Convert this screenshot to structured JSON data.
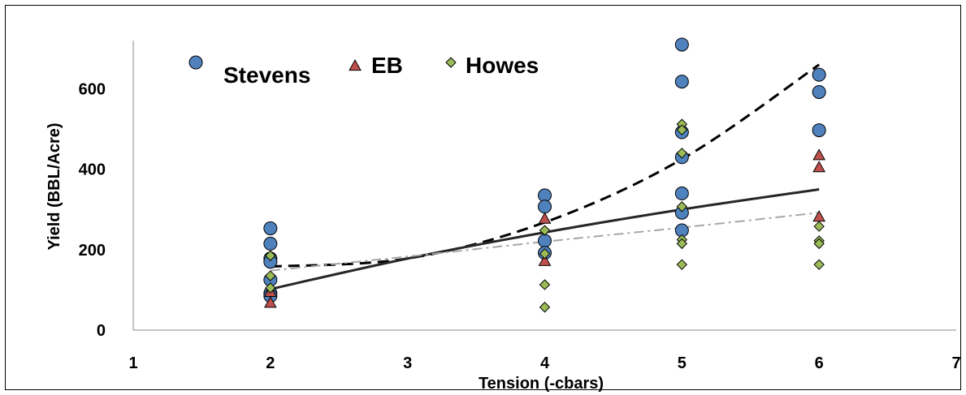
{
  "chart_data": {
    "type": "scatter",
    "title": "",
    "xlabel": "Tension (-cbars)",
    "ylabel": "Yield (BBL/Acre)",
    "xlim": [
      1,
      7
    ],
    "ylim": [
      0,
      720
    ],
    "xticks": [
      "1",
      "2",
      "3",
      "4",
      "5",
      "6",
      "7"
    ],
    "yticks": [
      "0",
      "200",
      "400",
      "600"
    ],
    "grid": false,
    "legend_position": "top-left",
    "series": [
      {
        "name": "Stevens",
        "marker": "circle",
        "color": "#4f81bd",
        "points": [
          [
            2,
            253
          ],
          [
            2,
            215
          ],
          [
            2,
            178
          ],
          [
            2,
            170
          ],
          [
            2,
            125
          ],
          [
            2,
            92
          ],
          [
            2,
            85
          ],
          [
            4,
            335
          ],
          [
            4,
            307
          ],
          [
            4,
            222
          ],
          [
            4,
            192
          ],
          [
            5,
            710
          ],
          [
            5,
            618
          ],
          [
            5,
            492
          ],
          [
            5,
            430
          ],
          [
            5,
            340
          ],
          [
            5,
            292
          ],
          [
            5,
            248
          ],
          [
            6,
            635
          ],
          [
            6,
            592
          ],
          [
            6,
            497
          ]
        ]
      },
      {
        "name": "EB",
        "marker": "triangle",
        "color": "#c0504d",
        "points": [
          [
            2,
            95
          ],
          [
            2,
            68
          ],
          [
            4,
            277
          ],
          [
            4,
            172
          ],
          [
            6,
            435
          ],
          [
            6,
            405
          ],
          [
            6,
            282
          ]
        ]
      },
      {
        "name": "Howes",
        "marker": "diamond",
        "color": "#9bbb59",
        "points": [
          [
            2,
            185
          ],
          [
            2,
            135
          ],
          [
            2,
            105
          ],
          [
            4,
            248
          ],
          [
            4,
            190
          ],
          [
            4,
            113
          ],
          [
            4,
            57
          ],
          [
            5,
            512
          ],
          [
            5,
            498
          ],
          [
            5,
            440
          ],
          [
            5,
            307
          ],
          [
            5,
            225
          ],
          [
            5,
            215
          ],
          [
            5,
            163
          ],
          [
            6,
            258
          ],
          [
            6,
            222
          ],
          [
            6,
            215
          ],
          [
            6,
            163
          ]
        ]
      }
    ],
    "trendlines": [
      {
        "style": "dashed",
        "color": "#000000",
        "points": [
          [
            2,
            158
          ],
          [
            3,
            178
          ],
          [
            4,
            268
          ],
          [
            5,
            425
          ],
          [
            6,
            660
          ]
        ]
      },
      {
        "style": "solid",
        "color": "#262626",
        "points": [
          [
            2,
            102
          ],
          [
            3,
            178
          ],
          [
            4,
            243
          ],
          [
            5,
            300
          ],
          [
            6,
            350
          ]
        ]
      },
      {
        "style": "dash-dot",
        "color": "#a6a6a6",
        "points": [
          [
            2,
            148
          ],
          [
            3,
            183
          ],
          [
            4,
            220
          ],
          [
            5,
            255
          ],
          [
            6,
            292
          ]
        ]
      }
    ]
  }
}
